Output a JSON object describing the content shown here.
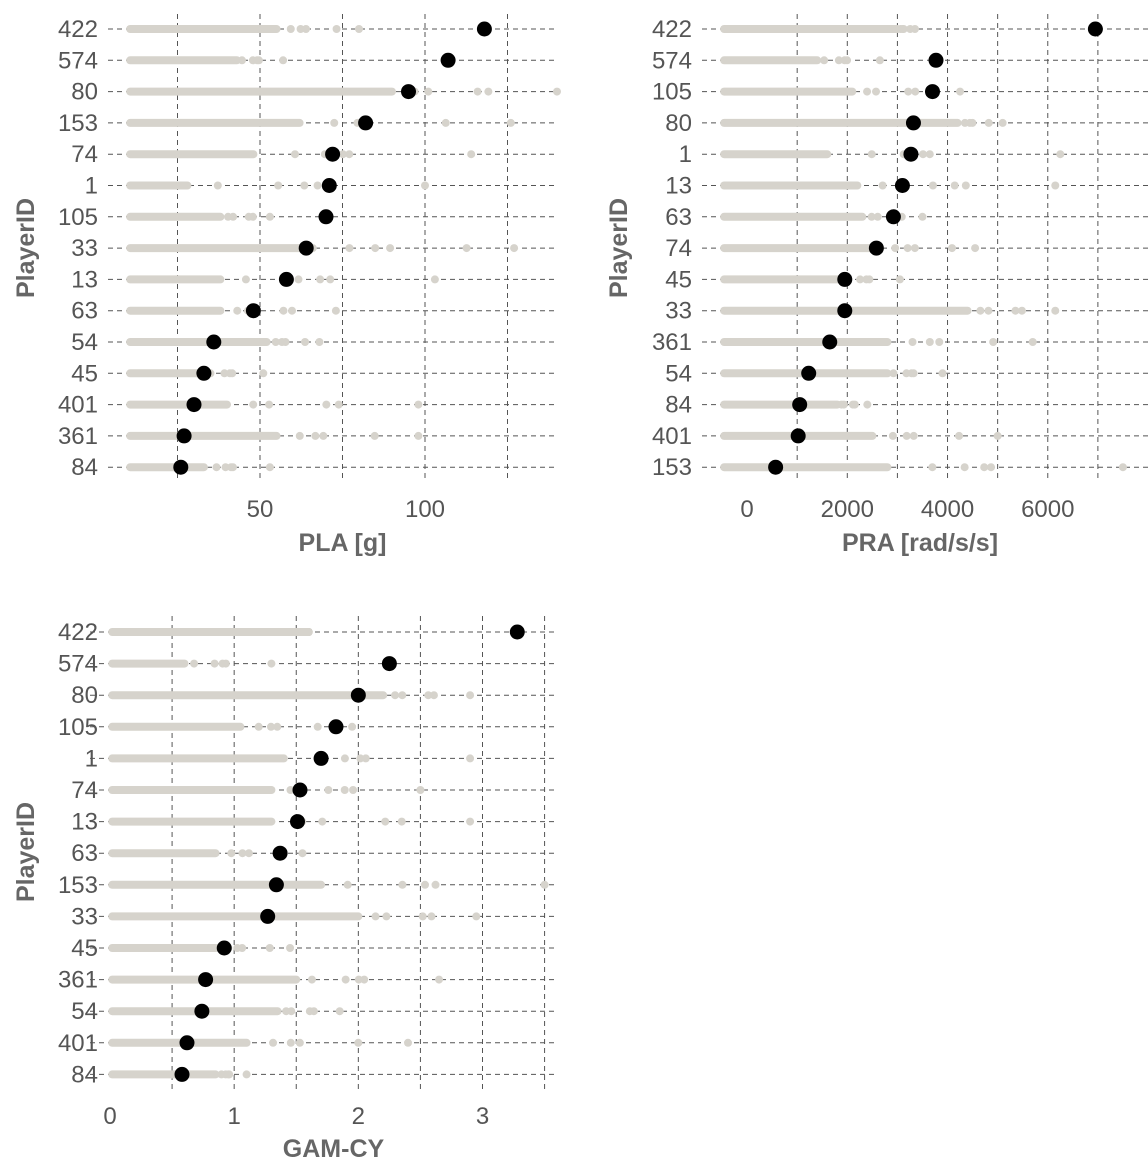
{
  "chart_data": [
    {
      "type": "scatter",
      "xlabel": "PLA [g]",
      "ylabel": "PlayerID",
      "xlim": [
        10,
        140
      ],
      "xticks": [
        50,
        100
      ],
      "grid_x": [
        25,
        50,
        75,
        100,
        125
      ],
      "categories": [
        "422",
        "574",
        "80",
        "153",
        "74",
        "1",
        "105",
        "33",
        "13",
        "63",
        "54",
        "45",
        "401",
        "361",
        "84"
      ],
      "summary": [
        118,
        107,
        95,
        82,
        72,
        71,
        70,
        64,
        58,
        48,
        36,
        33,
        30,
        27,
        26
      ],
      "raw_max": [
        80,
        57,
        140,
        126,
        114,
        100,
        53,
        127,
        103,
        73,
        68,
        51,
        98,
        98,
        53
      ],
      "raw_dense_max": [
        55,
        43,
        90,
        62,
        48,
        28,
        38,
        66,
        38,
        38,
        52,
        33,
        40,
        55,
        33
      ]
    },
    {
      "type": "scatter",
      "xlabel": "PRA [rad/s/s]",
      "ylabel": "PlayerID",
      "xlim": [
        -500,
        8000
      ],
      "xticks": [
        0,
        2000,
        4000,
        6000
      ],
      "grid_x": [
        1000,
        2000,
        3000,
        4000,
        5000,
        6000,
        7000
      ],
      "categories": [
        "422",
        "574",
        "105",
        "80",
        "1",
        "13",
        "63",
        "74",
        "45",
        "33",
        "361",
        "54",
        "84",
        "401",
        "153"
      ],
      "summary": [
        6950,
        3770,
        3700,
        3320,
        3270,
        3100,
        2920,
        2580,
        1950,
        1950,
        1650,
        1230,
        1050,
        1020,
        570
      ],
      "raw_max": [
        3350,
        2650,
        4250,
        5100,
        6250,
        6150,
        3500,
        4550,
        3050,
        6150,
        5700,
        3900,
        2400,
        5000,
        7500
      ],
      "raw_dense_max": [
        3000,
        1400,
        2100,
        4200,
        1600,
        2200,
        2300,
        2600,
        1800,
        4400,
        2800,
        2800,
        1800,
        2500,
        2800
      ]
    },
    {
      "type": "scatter",
      "xlabel": "GAM-CY",
      "ylabel": "PlayerID",
      "xlim": [
        0,
        3.6
      ],
      "xticks": [
        0,
        1,
        2,
        3
      ],
      "grid_x": [
        0.5,
        1,
        1.5,
        2,
        2.5,
        3,
        3.5
      ],
      "categories": [
        "422",
        "574",
        "80",
        "105",
        "1",
        "74",
        "13",
        "63",
        "153",
        "33",
        "45",
        "361",
        "54",
        "401",
        "84"
      ],
      "summary": [
        3.28,
        2.25,
        2.0,
        1.82,
        1.7,
        1.53,
        1.51,
        1.37,
        1.34,
        1.27,
        0.92,
        0.77,
        0.74,
        0.62,
        0.58
      ],
      "raw_max": [
        1.6,
        1.3,
        2.9,
        1.95,
        2.9,
        2.5,
        2.9,
        1.55,
        3.5,
        2.95,
        1.45,
        2.65,
        1.85,
        2.4,
        1.1
      ],
      "raw_dense_max": [
        1.6,
        0.6,
        2.2,
        1.05,
        1.4,
        1.3,
        1.3,
        0.85,
        1.7,
        2.0,
        0.85,
        1.5,
        1.35,
        1.1,
        0.85
      ]
    }
  ],
  "colors": {
    "raw": "#d6d3cc",
    "summary": "#000000",
    "grid": "#555555"
  }
}
